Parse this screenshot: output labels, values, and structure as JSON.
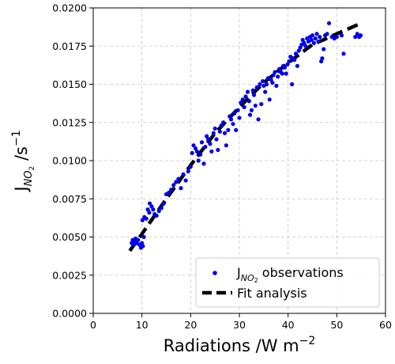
{
  "chart_data": {
    "type": "scatter",
    "xlabel": "Radiations /W m",
    "xlabel_sup": "−2",
    "ylabel_main": "J",
    "ylabel_sub": "NO",
    "ylabel_subsub": "2",
    "ylabel_unit": " /s",
    "ylabel_sup": "−1",
    "xlim": [
      0,
      60
    ],
    "ylim": [
      0.0,
      0.02
    ],
    "grid": true,
    "legend_position": "lower-right",
    "x_ticks": [
      {
        "value": 0,
        "label": "0"
      },
      {
        "value": 10,
        "label": "10"
      },
      {
        "value": 20,
        "label": "20"
      },
      {
        "value": 30,
        "label": "30"
      },
      {
        "value": 40,
        "label": "40"
      },
      {
        "value": 50,
        "label": "50"
      },
      {
        "value": 60,
        "label": "60"
      }
    ],
    "y_ticks": [
      {
        "value": 0.0,
        "label": "0.0000"
      },
      {
        "value": 0.0025,
        "label": "0.0025"
      },
      {
        "value": 0.005,
        "label": "0.0050"
      },
      {
        "value": 0.0075,
        "label": "0.0075"
      },
      {
        "value": 0.01,
        "label": "0.0100"
      },
      {
        "value": 0.0125,
        "label": "0.0125"
      },
      {
        "value": 0.015,
        "label": "0.0150"
      },
      {
        "value": 0.0175,
        "label": "0.0175"
      },
      {
        "value": 0.02,
        "label": "0.0200"
      }
    ],
    "series": [
      {
        "name_main": "J",
        "name_sub": "NO",
        "name_subsub": "2",
        "name_rest": " observations",
        "kind": "scatter",
        "color": "#0000ee",
        "points": [
          [
            7.9,
            0.0046
          ],
          [
            8.1,
            0.0048
          ],
          [
            8.3,
            0.0045
          ],
          [
            8.5,
            0.0047
          ],
          [
            8.7,
            0.0049
          ],
          [
            8.9,
            0.0046
          ],
          [
            9.2,
            0.0048
          ],
          [
            9.5,
            0.0045
          ],
          [
            9.8,
            0.0043
          ],
          [
            10.0,
            0.0046
          ],
          [
            10.2,
            0.0044
          ],
          [
            10.4,
            0.005
          ],
          [
            10.1,
            0.0061
          ],
          [
            10.5,
            0.0063
          ],
          [
            10.9,
            0.0062
          ],
          [
            11.2,
            0.0068
          ],
          [
            11.5,
            0.0066
          ],
          [
            11.6,
            0.0072
          ],
          [
            12.0,
            0.007
          ],
          [
            12.3,
            0.0068
          ],
          [
            12.6,
            0.0065
          ],
          [
            13.0,
            0.0064
          ],
          [
            13.5,
            0.0067
          ],
          [
            14.0,
            0.0069
          ],
          [
            14.5,
            0.0072
          ],
          [
            15.0,
            0.0078
          ],
          [
            15.5,
            0.0079
          ],
          [
            16.0,
            0.0081
          ],
          [
            16.5,
            0.0084
          ],
          [
            17.0,
            0.0086
          ],
          [
            17.5,
            0.0088
          ],
          [
            18.0,
            0.0082
          ],
          [
            18.5,
            0.0091
          ],
          [
            19.0,
            0.0087
          ],
          [
            19.5,
            0.0093
          ],
          [
            20.0,
            0.0096
          ],
          [
            20.3,
            0.0105
          ],
          [
            20.6,
            0.011
          ],
          [
            21.0,
            0.0108
          ],
          [
            21.3,
            0.0106
          ],
          [
            21.6,
            0.01
          ],
          [
            22.0,
            0.0104
          ],
          [
            22.3,
            0.0112
          ],
          [
            22.7,
            0.0098
          ],
          [
            23.0,
            0.0109
          ],
          [
            23.3,
            0.0116
          ],
          [
            23.6,
            0.0114
          ],
          [
            24.0,
            0.0111
          ],
          [
            24.3,
            0.0106
          ],
          [
            24.7,
            0.0118
          ],
          [
            25.0,
            0.0121
          ],
          [
            25.3,
            0.0114
          ],
          [
            25.6,
            0.0107
          ],
          [
            26.0,
            0.0119
          ],
          [
            26.3,
            0.0123
          ],
          [
            26.7,
            0.0125
          ],
          [
            27.0,
            0.0118
          ],
          [
            27.3,
            0.011
          ],
          [
            27.7,
            0.012
          ],
          [
            28.0,
            0.0129
          ],
          [
            28.3,
            0.0127
          ],
          [
            28.7,
            0.0124
          ],
          [
            29.0,
            0.0131
          ],
          [
            29.3,
            0.012
          ],
          [
            29.7,
            0.0133
          ],
          [
            30.0,
            0.0128
          ],
          [
            30.3,
            0.0138
          ],
          [
            30.7,
            0.014
          ],
          [
            31.0,
            0.0135
          ],
          [
            31.3,
            0.0142
          ],
          [
            31.7,
            0.0145
          ],
          [
            32.0,
            0.0139
          ],
          [
            32.2,
            0.013
          ],
          [
            32.5,
            0.0133
          ],
          [
            32.8,
            0.0146
          ],
          [
            33.0,
            0.0143
          ],
          [
            33.3,
            0.0136
          ],
          [
            33.6,
            0.0148
          ],
          [
            33.9,
            0.0127
          ],
          [
            34.2,
            0.015
          ],
          [
            34.5,
            0.0137
          ],
          [
            34.8,
            0.0152
          ],
          [
            35.0,
            0.0149
          ],
          [
            35.3,
            0.0145
          ],
          [
            35.6,
            0.015
          ],
          [
            35.9,
            0.0154
          ],
          [
            36.2,
            0.014
          ],
          [
            36.5,
            0.0153
          ],
          [
            36.8,
            0.0151
          ],
          [
            37.0,
            0.0156
          ],
          [
            37.3,
            0.0158
          ],
          [
            37.6,
            0.0149
          ],
          [
            37.9,
            0.0155
          ],
          [
            38.2,
            0.016
          ],
          [
            38.5,
            0.0158
          ],
          [
            38.8,
            0.0157
          ],
          [
            39.0,
            0.0162
          ],
          [
            39.3,
            0.0161
          ],
          [
            39.6,
            0.0157
          ],
          [
            39.9,
            0.0163
          ],
          [
            40.2,
            0.0165
          ],
          [
            40.5,
            0.0168
          ],
          [
            40.8,
            0.015
          ],
          [
            41.0,
            0.0167
          ],
          [
            41.3,
            0.0166
          ],
          [
            41.6,
            0.017
          ],
          [
            41.9,
            0.0162
          ],
          [
            42.2,
            0.0172
          ],
          [
            42.5,
            0.0174
          ],
          [
            42.8,
            0.0176
          ],
          [
            43.0,
            0.0179
          ],
          [
            43.3,
            0.0177
          ],
          [
            43.6,
            0.0175
          ],
          [
            43.9,
            0.018
          ],
          [
            44.2,
            0.0178
          ],
          [
            44.5,
            0.0181
          ],
          [
            44.8,
            0.0179
          ],
          [
            45.0,
            0.0182
          ],
          [
            45.3,
            0.0177
          ],
          [
            45.6,
            0.018
          ],
          [
            45.9,
            0.0183
          ],
          [
            46.2,
            0.0178
          ],
          [
            46.5,
            0.0181
          ],
          [
            46.8,
            0.0165
          ],
          [
            47.0,
            0.0167
          ],
          [
            47.3,
            0.0173
          ],
          [
            47.6,
            0.0182
          ],
          [
            48.0,
            0.0183
          ],
          [
            48.4,
            0.019
          ],
          [
            49.0,
            0.0181
          ],
          [
            49.5,
            0.018
          ],
          [
            50.0,
            0.0181
          ],
          [
            51.0,
            0.0182
          ],
          [
            51.4,
            0.017
          ],
          [
            53.8,
            0.0181
          ],
          [
            54.2,
            0.0183
          ],
          [
            54.6,
            0.0181
          ],
          [
            54.9,
            0.0182
          ]
        ]
      },
      {
        "name": "Fit analysis",
        "kind": "line",
        "style": "dashed",
        "color": "#000000",
        "points": [
          [
            7.5,
            0.0041
          ],
          [
            10,
            0.0052
          ],
          [
            15,
            0.0075
          ],
          [
            20,
            0.0097
          ],
          [
            25,
            0.0118
          ],
          [
            30,
            0.0135
          ],
          [
            35,
            0.0151
          ],
          [
            40,
            0.0164
          ],
          [
            45,
            0.0176
          ],
          [
            50,
            0.0183
          ],
          [
            55,
            0.019
          ]
        ]
      }
    ]
  }
}
